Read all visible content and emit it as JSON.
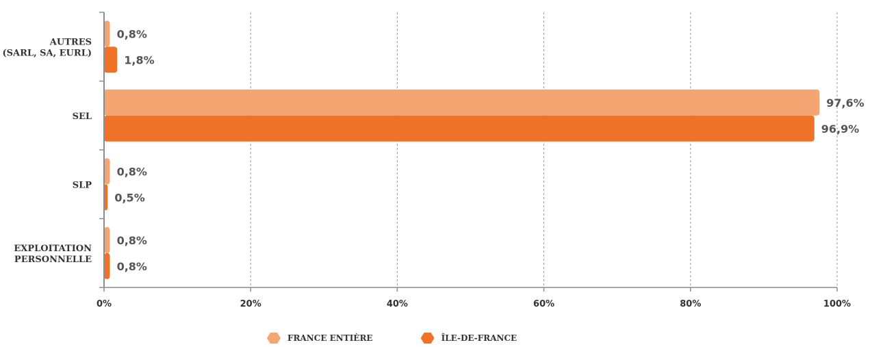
{
  "chart_data": {
    "type": "bar",
    "orientation": "horizontal",
    "categories": [
      [
        "AUTRES",
        "(SARL, SA, EURL)"
      ],
      [
        "SEL"
      ],
      [
        "SLP"
      ],
      [
        "EXPLOITATION",
        "PERSONNELLE"
      ]
    ],
    "series": [
      {
        "name": "FRANCE ENTIÈRE",
        "color": "#F5A572",
        "values": [
          0.8,
          97.6,
          0.8,
          0.8
        ],
        "labels": [
          "0,8%",
          "97,6%",
          "0,8%",
          "0,8%"
        ]
      },
      {
        "name": "ÎLE-DE-FRANCE",
        "color": "#F07128",
        "values": [
          1.8,
          96.9,
          0.5,
          0.8
        ],
        "labels": [
          "1,8%",
          "96,9%",
          "0,5%",
          "0,8%"
        ]
      }
    ],
    "xlim": [
      0,
      100
    ],
    "xticks": [
      0,
      20,
      40,
      60,
      80,
      100
    ],
    "xtick_labels": [
      "0%",
      "20%",
      "40%",
      "60%",
      "80%",
      "100%"
    ],
    "grid": "vertical dashed",
    "legend_position": "bottom-center"
  }
}
